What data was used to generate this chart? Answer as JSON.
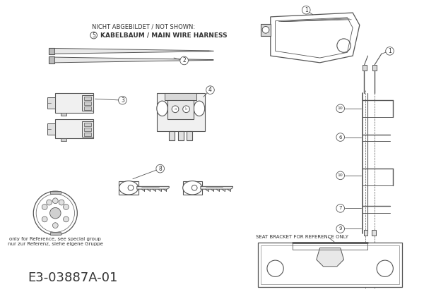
{
  "bg_color": "#ffffff",
  "line_color": "#555555",
  "text_color": "#333333",
  "title_text": "E3-03887A-01",
  "not_shown_label": "NICHT ABGEBILDET / NOT SHOWN:",
  "item5_label": "KABELBAUM / MAIN WIRE HARNESS",
  "seat_label": "SEAT BRACKET FOR REFERENCE ONLY",
  "ref_label1": "only for Reference, see special group",
  "ref_label2": "nur zur Referenz, siehe eigene Gruppe",
  "figsize": [
    6.0,
    4.24
  ],
  "dpi": 100
}
